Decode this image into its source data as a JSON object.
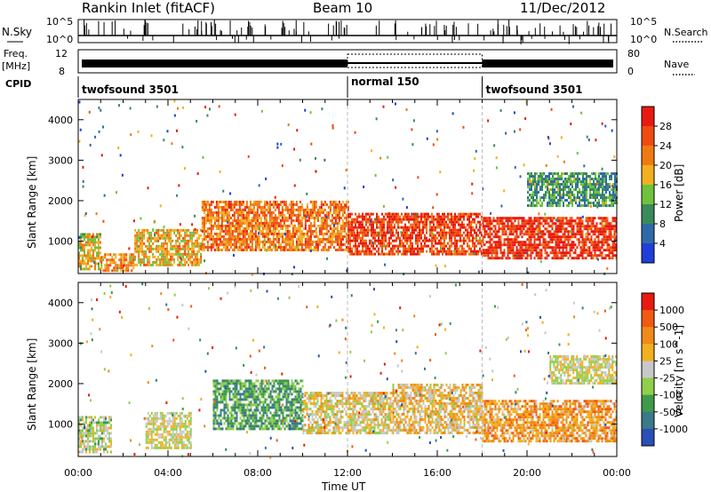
{
  "title": {
    "radar": "Rankin Inlet (fitACF)",
    "beam": "Beam 10",
    "date": "11/Dec/2012"
  },
  "top_panels": {
    "nsky_label": "N.Sky",
    "nsky_ticks": [
      "10^5",
      "10^0"
    ],
    "nsearch_label": "N.Search",
    "freq_label": "Freq.",
    "freq_unit": "[MHz]",
    "freq_ticks": [
      "12",
      "8"
    ],
    "nave_label": "Nave",
    "nave_ticks": [
      "80",
      "0"
    ],
    "cpid_label": "CPID",
    "modes": [
      {
        "name": "twofsound 3501",
        "start_hour": 0,
        "end_hour": 12
      },
      {
        "name": "normal 150",
        "start_hour": 12,
        "end_hour": 18
      },
      {
        "name": "twofsound 3501",
        "start_hour": 18,
        "end_hour": 24
      }
    ]
  },
  "colors": {
    "power_scale": [
      "#1f3fd8",
      "#2f6aa8",
      "#3a8a5a",
      "#6ec23c",
      "#f2b01e",
      "#f07a12",
      "#f04a10",
      "#e81a10"
    ],
    "velocity_scale": [
      "#2b4fb8",
      "#3a7a8a",
      "#3f9a4a",
      "#8fcf4a",
      "#c8c8c8",
      "#f2b01e",
      "#f08a18",
      "#f05a12",
      "#e81a10"
    ]
  },
  "chart_data": [
    {
      "type": "heatmap",
      "name": "power",
      "xlabel": "",
      "ylabel": "Slant Range [km]",
      "xlim": [
        0,
        24
      ],
      "ylim": [
        200,
        4500
      ],
      "y_ticks": [
        1000,
        2000,
        3000,
        4000
      ],
      "colorbar_label": "Power [dB]",
      "colorbar_ticks": [
        4,
        8,
        12,
        16,
        20,
        24,
        28
      ],
      "regions": [
        {
          "t0": 0.0,
          "t1": 1.0,
          "r0": 300,
          "r1": 1200,
          "level": 0.55
        },
        {
          "t0": 1.0,
          "t1": 2.5,
          "r0": 300,
          "r1": 700,
          "level": 0.7
        },
        {
          "t0": 2.5,
          "t1": 5.5,
          "r0": 400,
          "r1": 1300,
          "level": 0.6
        },
        {
          "t0": 5.5,
          "t1": 12.0,
          "r0": 800,
          "r1": 2000,
          "level": 0.75
        },
        {
          "t0": 12.0,
          "t1": 18.0,
          "r0": 700,
          "r1": 1700,
          "level": 0.9
        },
        {
          "t0": 18.0,
          "t1": 24.0,
          "r0": 600,
          "r1": 1600,
          "level": 0.95
        },
        {
          "t0": 20.0,
          "t1": 24.0,
          "r0": 1900,
          "r1": 2700,
          "level": 0.3
        }
      ]
    },
    {
      "type": "heatmap",
      "name": "velocity",
      "xlabel": "Time UT",
      "ylabel": "Slant Range [km]",
      "xlim": [
        0,
        24
      ],
      "ylim": [
        200,
        4500
      ],
      "x_ticks": [
        "00:00",
        "04:00",
        "08:00",
        "12:00",
        "16:00",
        "20:00",
        "00:00"
      ],
      "y_ticks": [
        1000,
        2000,
        3000,
        4000
      ],
      "colorbar_label": "Velocity [m s^-1]",
      "colorbar_ticks": [
        "1000",
        "500",
        "100",
        "25",
        "-25",
        "-100",
        "-500",
        "-1000"
      ],
      "regions": [
        {
          "t0": 0.0,
          "t1": 1.5,
          "r0": 300,
          "r1": 1200,
          "level": 0.45
        },
        {
          "t0": 3.0,
          "t1": 5.0,
          "r0": 400,
          "r1": 1300,
          "level": 0.5
        },
        {
          "t0": 6.0,
          "t1": 10.0,
          "r0": 900,
          "r1": 2100,
          "level": 0.25
        },
        {
          "t0": 10.0,
          "t1": 14.0,
          "r0": 800,
          "r1": 1800,
          "level": 0.55
        },
        {
          "t0": 14.0,
          "t1": 18.0,
          "r0": 800,
          "r1": 2000,
          "level": 0.6
        },
        {
          "t0": 18.0,
          "t1": 24.0,
          "r0": 600,
          "r1": 1600,
          "level": 0.7
        },
        {
          "t0": 21.0,
          "t1": 24.0,
          "r0": 2000,
          "r1": 2700,
          "level": 0.5
        }
      ]
    }
  ]
}
